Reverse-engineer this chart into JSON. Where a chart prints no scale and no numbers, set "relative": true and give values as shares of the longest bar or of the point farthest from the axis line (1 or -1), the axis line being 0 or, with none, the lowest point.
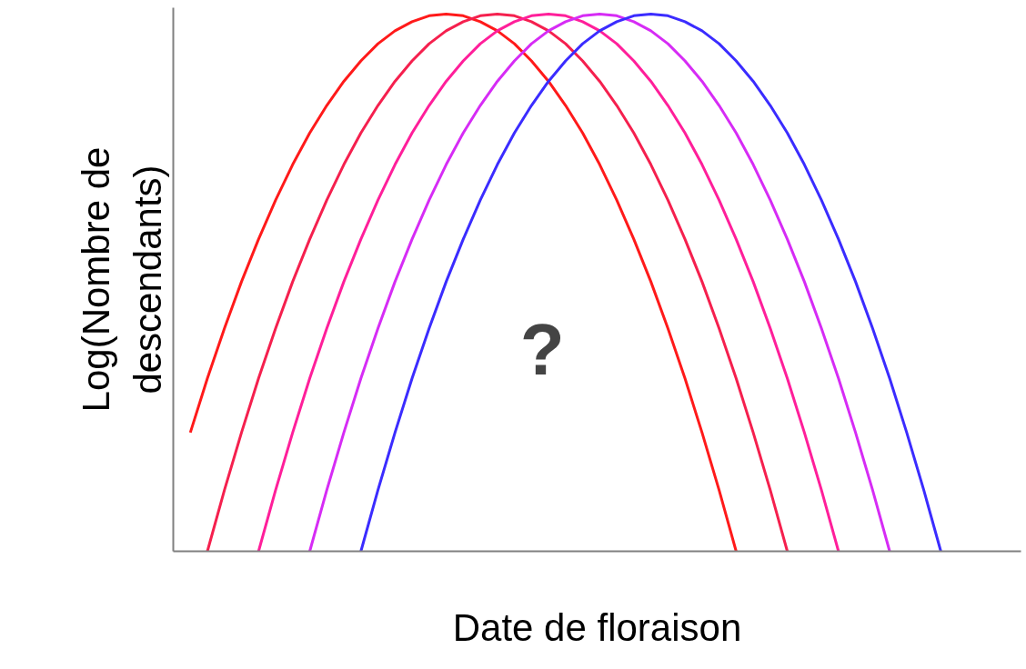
{
  "chart_data": {
    "type": "line",
    "relative": true,
    "xlabel": "Date de floraison",
    "ylabel": "Log(Nombre de\ndescendants)",
    "annotations": [
      "?"
    ],
    "categories": [
      null,
      null,
      null,
      null,
      null,
      null,
      null,
      null,
      null,
      null,
      null,
      null,
      null,
      null,
      null,
      null,
      null,
      null,
      null,
      null,
      null,
      null,
      null,
      null,
      null,
      null,
      null,
      null,
      null,
      null,
      null,
      null,
      null,
      null,
      null,
      null,
      null,
      null,
      null,
      null,
      null,
      null,
      null,
      null,
      null,
      null,
      null,
      null,
      null
    ],
    "series": [
      {
        "color": "#ff1a1a",
        "values": [
          0.221,
          0.322,
          0.415,
          0.502,
          0.581,
          0.654,
          0.72,
          0.779,
          0.83,
          0.875,
          0.913,
          0.945,
          0.969,
          0.986,
          0.997,
          1,
          0.997,
          0.986,
          0.969,
          0.945,
          0.913,
          0.875,
          0.83,
          0.779,
          0.72,
          0.654,
          0.581,
          0.502,
          0.415,
          0.322,
          0.221,
          0.114,
          0,
          null,
          null,
          null,
          null,
          null,
          null,
          null,
          null,
          null,
          null,
          null,
          null,
          null,
          null,
          null,
          null
        ]
      },
      {
        "color": "#f5204e",
        "values": [
          null,
          0,
          0.114,
          0.221,
          0.322,
          0.415,
          0.502,
          0.581,
          0.654,
          0.72,
          0.779,
          0.83,
          0.875,
          0.913,
          0.945,
          0.969,
          0.986,
          0.997,
          1,
          0.997,
          0.986,
          0.969,
          0.945,
          0.913,
          0.875,
          0.83,
          0.779,
          0.72,
          0.654,
          0.581,
          0.502,
          0.415,
          0.322,
          0.221,
          0.114,
          0,
          null,
          null,
          null,
          null,
          null,
          null,
          null,
          null,
          null,
          null,
          null,
          null,
          null
        ]
      },
      {
        "color": "#ff1f9a",
        "values": [
          null,
          null,
          null,
          null,
          0,
          0.114,
          0.221,
          0.322,
          0.415,
          0.502,
          0.581,
          0.654,
          0.72,
          0.779,
          0.83,
          0.875,
          0.913,
          0.945,
          0.969,
          0.986,
          0.997,
          1,
          0.997,
          0.986,
          0.969,
          0.945,
          0.913,
          0.875,
          0.83,
          0.779,
          0.72,
          0.654,
          0.581,
          0.502,
          0.415,
          0.322,
          0.221,
          0.114,
          0,
          null,
          null,
          null,
          null,
          null,
          null,
          null,
          null,
          null,
          null
        ]
      },
      {
        "color": "#d62cf5",
        "values": [
          null,
          null,
          null,
          null,
          null,
          null,
          null,
          0,
          0.114,
          0.221,
          0.322,
          0.415,
          0.502,
          0.581,
          0.654,
          0.72,
          0.779,
          0.83,
          0.875,
          0.913,
          0.945,
          0.969,
          0.986,
          0.997,
          1,
          0.997,
          0.986,
          0.969,
          0.945,
          0.913,
          0.875,
          0.83,
          0.779,
          0.72,
          0.654,
          0.581,
          0.502,
          0.415,
          0.322,
          0.221,
          0.114,
          0,
          null,
          null,
          null,
          null,
          null,
          null,
          null
        ]
      },
      {
        "color": "#3b2cff",
        "values": [
          null,
          null,
          null,
          null,
          null,
          null,
          null,
          null,
          null,
          null,
          0,
          0.114,
          0.221,
          0.322,
          0.415,
          0.502,
          0.581,
          0.654,
          0.72,
          0.779,
          0.83,
          0.875,
          0.913,
          0.945,
          0.969,
          0.986,
          0.997,
          1,
          0.997,
          0.986,
          0.969,
          0.945,
          0.913,
          0.875,
          0.83,
          0.779,
          0.72,
          0.654,
          0.581,
          0.502,
          0.415,
          0.322,
          0.221,
          0.114,
          0,
          null,
          null,
          null,
          null
        ]
      }
    ]
  }
}
